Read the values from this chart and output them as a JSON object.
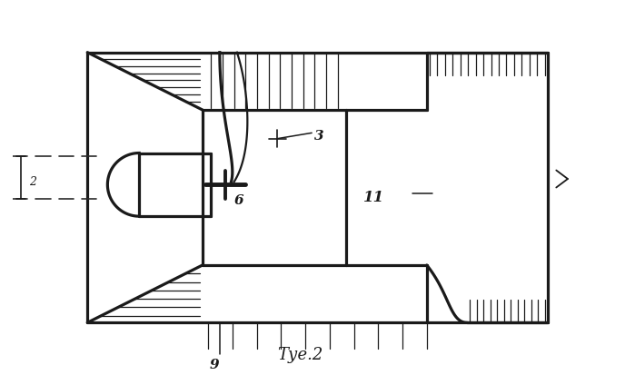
{
  "bg_color": "#ffffff",
  "lc": "#1a1a1a",
  "fig_width": 6.99,
  "fig_height": 4.13,
  "dpi": 100,
  "caption": "Τуе.2",
  "lbl_3": "3",
  "lbl_6": "6",
  "lbl_9": "9",
  "lbl_11": "11",
  "lbl_2": "2",
  "OL": 13.0,
  "OR": 93.0,
  "OT": 56.0,
  "OB": 9.0,
  "FX": 33.0,
  "FTY": 46.0,
  "FBY": 19.0,
  "CRX": 58.0,
  "CTY": 46.0,
  "CBY": 19.0,
  "NL": 22.0,
  "NR": 34.5,
  "NT": 38.5,
  "NB": 27.5,
  "RNX": 72.0,
  "RNT": 46.0,
  "RNB": 19.0,
  "RWT": 56.0,
  "RWB": 9.0,
  "RVX": 79.0
}
